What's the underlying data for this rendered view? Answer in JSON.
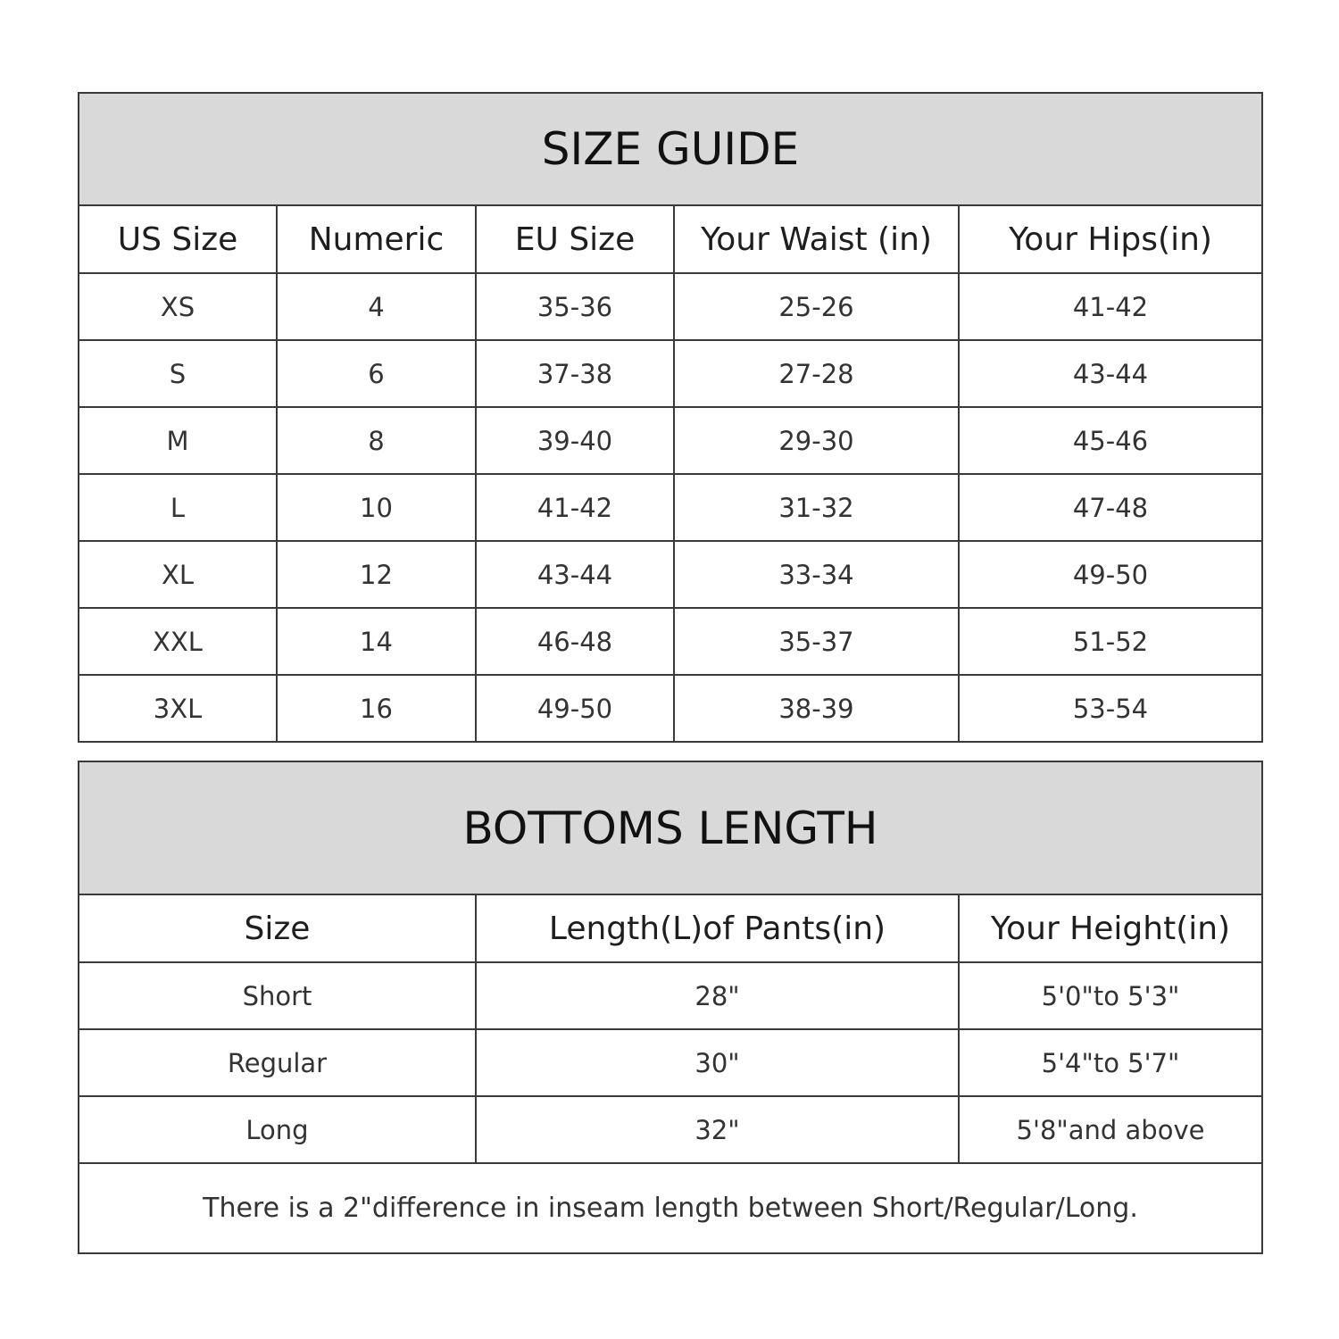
{
  "size_guide": {
    "title": "SIZE GUIDE",
    "headers": [
      "US Size",
      "Numeric",
      "EU Size",
      "Your Waist (in)",
      "Your Hips(in)"
    ],
    "rows": [
      [
        "XS",
        "4",
        "35-36",
        "25-26",
        "41-42"
      ],
      [
        "S",
        "6",
        "37-38",
        "27-28",
        "43-44"
      ],
      [
        "M",
        "8",
        "39-40",
        "29-30",
        "45-46"
      ],
      [
        "L",
        "10",
        "41-42",
        "31-32",
        "47-48"
      ],
      [
        "XL",
        "12",
        "43-44",
        "33-34",
        "49-50"
      ],
      [
        "XXL",
        "14",
        "46-48",
        "35-37",
        "51-52"
      ],
      [
        "3XL",
        "16",
        "49-50",
        "38-39",
        "53-54"
      ]
    ]
  },
  "bottoms_length": {
    "title": "BOTTOMS LENGTH",
    "headers": [
      "Size",
      "Length(L)of Pants(in)",
      "Your Height(in)"
    ],
    "rows": [
      [
        "Short",
        "28\"",
        "5'0\"to 5'3\""
      ],
      [
        "Regular",
        "30\"",
        "5'4\"to 5'7\""
      ],
      [
        "Long",
        "32\"",
        "5'8\"and above"
      ]
    ],
    "note": "There is a 2\"difference in inseam length between Short/Regular/Long."
  },
  "colors": {
    "header_bg": "#d9d9d9",
    "border": "#3a3a3a"
  }
}
